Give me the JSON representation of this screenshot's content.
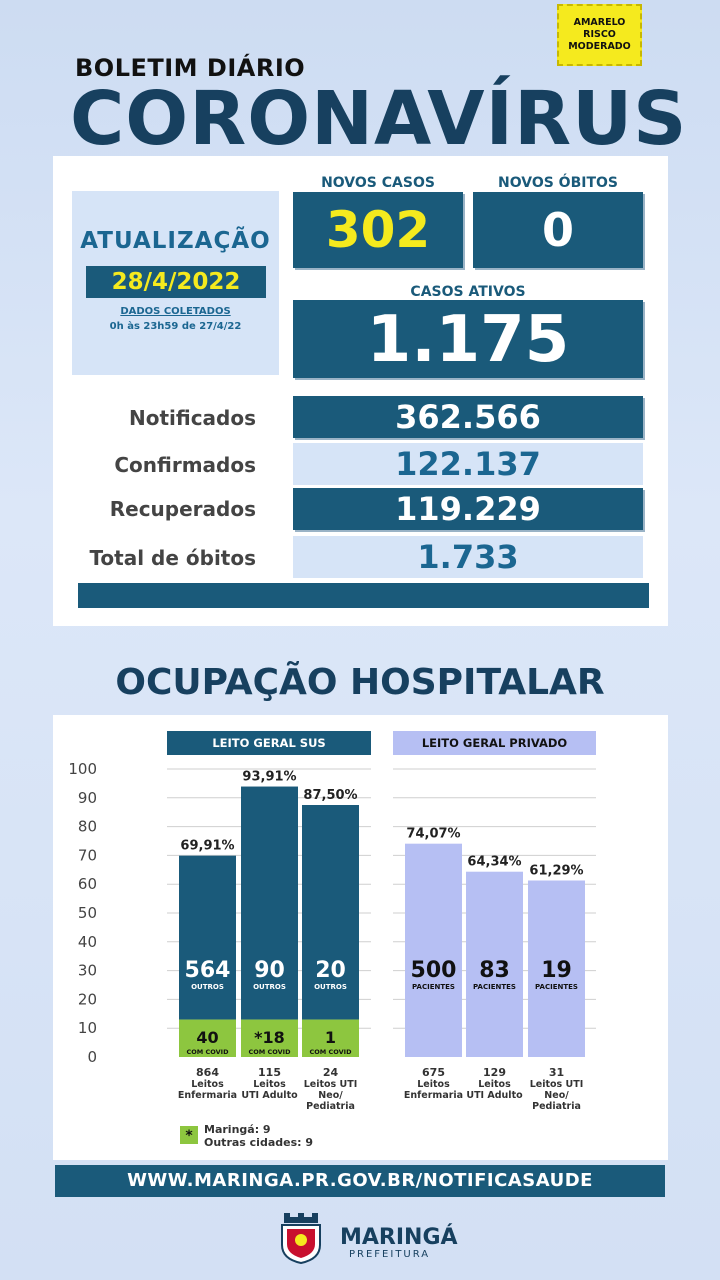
{
  "risk": {
    "line1": "AMARELO",
    "line2": "RISCO",
    "line3": "MODERADO",
    "color": "#f5ea1e"
  },
  "header": {
    "subtitle": "BOLETIM DIÁRIO",
    "title": "CORONAVÍRUS"
  },
  "update": {
    "label": "ATUALIZAÇÃO",
    "date": "28/4/2022",
    "collected_label": "DADOS COLETADOS",
    "collected_range": "0h às 23h59 de 27/4/22"
  },
  "summary": {
    "new_cases_label": "NOVOS CASOS",
    "new_cases": "302",
    "new_deaths_label": "NOVOS ÓBITOS",
    "new_deaths": "0",
    "active_label": "CASOS ATIVOS",
    "active": "1.175"
  },
  "stats": [
    {
      "label": "Notificados",
      "value": "362.566"
    },
    {
      "label": "Confirmados",
      "value": "122.137"
    },
    {
      "label": "Recuperados",
      "value": "119.229"
    },
    {
      "label": "Total de óbitos",
      "value": "1.733"
    }
  ],
  "occupancy_title": "OCUPAÇÃO HOSPITALAR",
  "colors": {
    "dark": "#1a5a7a",
    "light": "#d6e4f7",
    "covid": "#8dc63f",
    "private": "#b6bff3",
    "accent": "#f5ea1e"
  },
  "chart_data": {
    "type": "bar",
    "ylim": [
      0,
      100
    ],
    "yticks": [
      "100",
      "90",
      "80",
      "70",
      "60",
      "50",
      "40",
      "30",
      "20",
      "10",
      "0"
    ],
    "groups": [
      {
        "header": "LEITO GERAL SUS",
        "bars": [
          {
            "pct": 69.91,
            "pct_label": "69,91%",
            "others": "564",
            "others_label": "OUTROS",
            "covid": "40",
            "covid_label": "COM COVID",
            "covid_pct": 13,
            "beds": "864",
            "name": "Leitos Enfermaria"
          },
          {
            "pct": 93.91,
            "pct_label": "93,91%",
            "others": "90",
            "others_label": "OUTROS",
            "covid": "*18",
            "covid_label": "COM COVID",
            "covid_pct": 13,
            "beds": "115",
            "name": "Leitos UTI Adulto"
          },
          {
            "pct": 87.5,
            "pct_label": "87,50%",
            "others": "20",
            "others_label": "OUTROS",
            "covid": "1",
            "covid_label": "COM COVID",
            "covid_pct": 13,
            "beds": "24",
            "name": "Leitos UTI Neo/ Pediatria"
          }
        ]
      },
      {
        "header": "LEITO GERAL PRIVADO",
        "bars": [
          {
            "pct": 74.07,
            "pct_label": "74,07%",
            "patients": "500",
            "patients_label": "PACIENTES",
            "beds": "675",
            "name": "Leitos Enfermaria"
          },
          {
            "pct": 64.34,
            "pct_label": "64,34%",
            "patients": "83",
            "patients_label": "PACIENTES",
            "beds": "129",
            "name": "Leitos UTI Adulto"
          },
          {
            "pct": 61.29,
            "pct_label": "61,29%",
            "patients": "19",
            "patients_label": "PACIENTES",
            "beds": "31",
            "name": "Leitos UTI Neo/ Pediatria"
          }
        ]
      }
    ]
  },
  "legend": {
    "symbol": "*",
    "line1": "Maringá: 9",
    "line2": "Outras cidades: 9"
  },
  "footer": {
    "url": "WWW.MARINGA.PR.GOV.BR/NOTIFICASAUDE",
    "brand": "MARINGÁ",
    "brand_sub": "PREFEITURA"
  }
}
